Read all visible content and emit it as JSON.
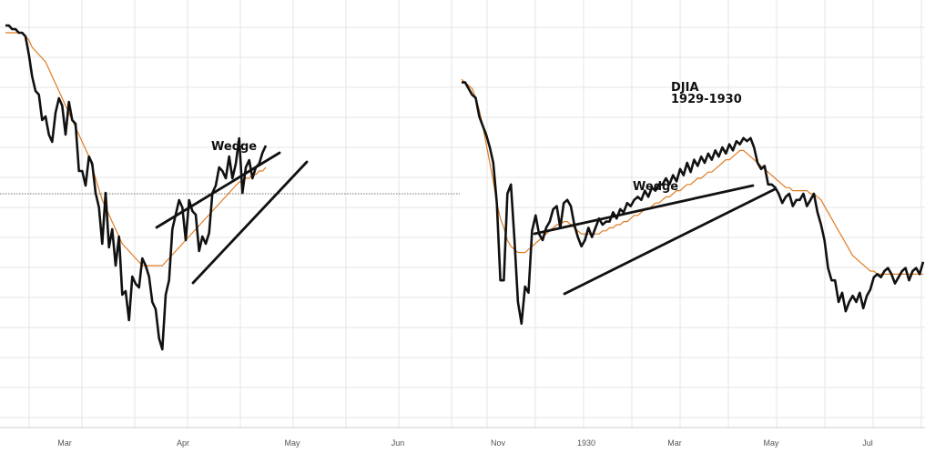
{
  "chart_data": [
    {
      "type": "line",
      "title": "",
      "xlabel": "",
      "ylabel": "",
      "x_ticks": [
        "Mar",
        "Apr",
        "May",
        "Jun"
      ],
      "annotations": [
        "Wedge"
      ],
      "grid": true,
      "colors": {
        "price": "#111111",
        "moving_average": "#e07b22"
      },
      "series": [
        {
          "values": [
            96,
            96,
            95,
            95,
            94,
            94,
            93,
            88,
            82,
            78,
            77,
            70,
            71,
            66,
            64,
            72,
            76,
            74,
            66,
            75,
            70,
            69,
            56,
            56,
            52,
            60,
            58,
            50,
            46,
            36,
            50,
            35,
            40,
            30,
            38,
            22,
            23,
            15,
            27,
            25,
            24,
            32,
            30,
            27,
            20,
            18,
            10,
            7,
            22,
            26,
            40,
            44,
            48,
            46,
            37,
            48,
            45,
            44,
            34,
            38,
            36,
            39,
            50,
            52,
            57,
            56,
            54,
            60,
            54,
            58,
            65,
            50,
            57,
            59,
            54,
            57,
            58,
            61,
            63
          ]
        },
        {
          "values": [
            94,
            94,
            94,
            94,
            94,
            94,
            93,
            92,
            90,
            89,
            88,
            87,
            86,
            84,
            82,
            80,
            78,
            76,
            74,
            72,
            70,
            68,
            66,
            64,
            62,
            60,
            57,
            54,
            51,
            48,
            46,
            44,
            42,
            40,
            38,
            36,
            35,
            34,
            33,
            32,
            31,
            30,
            30,
            30,
            30,
            30,
            30,
            30,
            31,
            32,
            33,
            34,
            35,
            36,
            37,
            38,
            39,
            40,
            41,
            42,
            43,
            44,
            45,
            46,
            47,
            48,
            49,
            50,
            51,
            52,
            53,
            53,
            54,
            54,
            55,
            55,
            56,
            56,
            57
          ]
        }
      ]
    },
    {
      "type": "line",
      "title": "DJIA\n1929-1930",
      "xlabel": "",
      "ylabel": "",
      "x_ticks": [
        "Nov",
        "1930",
        "Mar",
        "May",
        "Jul"
      ],
      "annotations": [
        "Wedge"
      ],
      "grid": true,
      "colors": {
        "price": "#111111",
        "moving_average": "#e07b22"
      },
      "series": [
        {
          "values": [
            91,
            91,
            89,
            87,
            86,
            80,
            77,
            74,
            70,
            65,
            52,
            27,
            27,
            55,
            58,
            40,
            20,
            13,
            25,
            23,
            43,
            48,
            42,
            40,
            44,
            46,
            50,
            51,
            44,
            52,
            53,
            51,
            45,
            41,
            38,
            40,
            44,
            41,
            44,
            47,
            45,
            46,
            46,
            49,
            47,
            50,
            49,
            52,
            51,
            53,
            54,
            53,
            56,
            54,
            57,
            56,
            58,
            58,
            60,
            58,
            61,
            59,
            63,
            61,
            65,
            62,
            66,
            64,
            67,
            65,
            68,
            66,
            69,
            67,
            70,
            68,
            71,
            69,
            72,
            71,
            73,
            72,
            73,
            70,
            65,
            63,
            64,
            58,
            58,
            57,
            55,
            52,
            54,
            55,
            51,
            53,
            53,
            55,
            51,
            53,
            55,
            49,
            45,
            40,
            31,
            27,
            27,
            20,
            23,
            17,
            20,
            22,
            20,
            23,
            18,
            22,
            24,
            28,
            29,
            28,
            30,
            31,
            29,
            26,
            28,
            30,
            31,
            27,
            30,
            31,
            29,
            33
          ]
        },
        {
          "values": [
            92,
            91,
            90,
            89,
            86,
            82,
            77,
            71,
            65,
            59,
            52,
            47,
            44,
            40,
            38,
            37,
            36,
            36,
            36,
            37,
            38,
            39,
            40,
            41,
            42,
            43,
            44,
            45,
            45,
            46,
            46,
            45,
            44,
            43,
            42,
            42,
            42,
            42,
            42,
            42,
            43,
            43,
            44,
            44,
            45,
            45,
            46,
            46,
            47,
            48,
            48,
            49,
            50,
            50,
            51,
            52,
            52,
            53,
            54,
            54,
            55,
            56,
            56,
            57,
            58,
            58,
            59,
            60,
            60,
            61,
            62,
            62,
            63,
            64,
            65,
            66,
            66,
            67,
            68,
            69,
            69,
            68,
            67,
            66,
            65,
            64,
            63,
            62,
            61,
            60,
            59,
            58,
            57,
            57,
            56,
            56,
            56,
            56,
            56,
            55,
            55,
            54,
            53,
            51,
            49,
            47,
            45,
            43,
            41,
            39,
            37,
            35,
            34,
            33,
            32,
            31,
            30,
            30,
            29,
            29,
            29,
            29,
            29,
            29,
            29,
            29,
            29,
            29,
            29,
            29,
            29,
            29
          ]
        }
      ]
    }
  ]
}
